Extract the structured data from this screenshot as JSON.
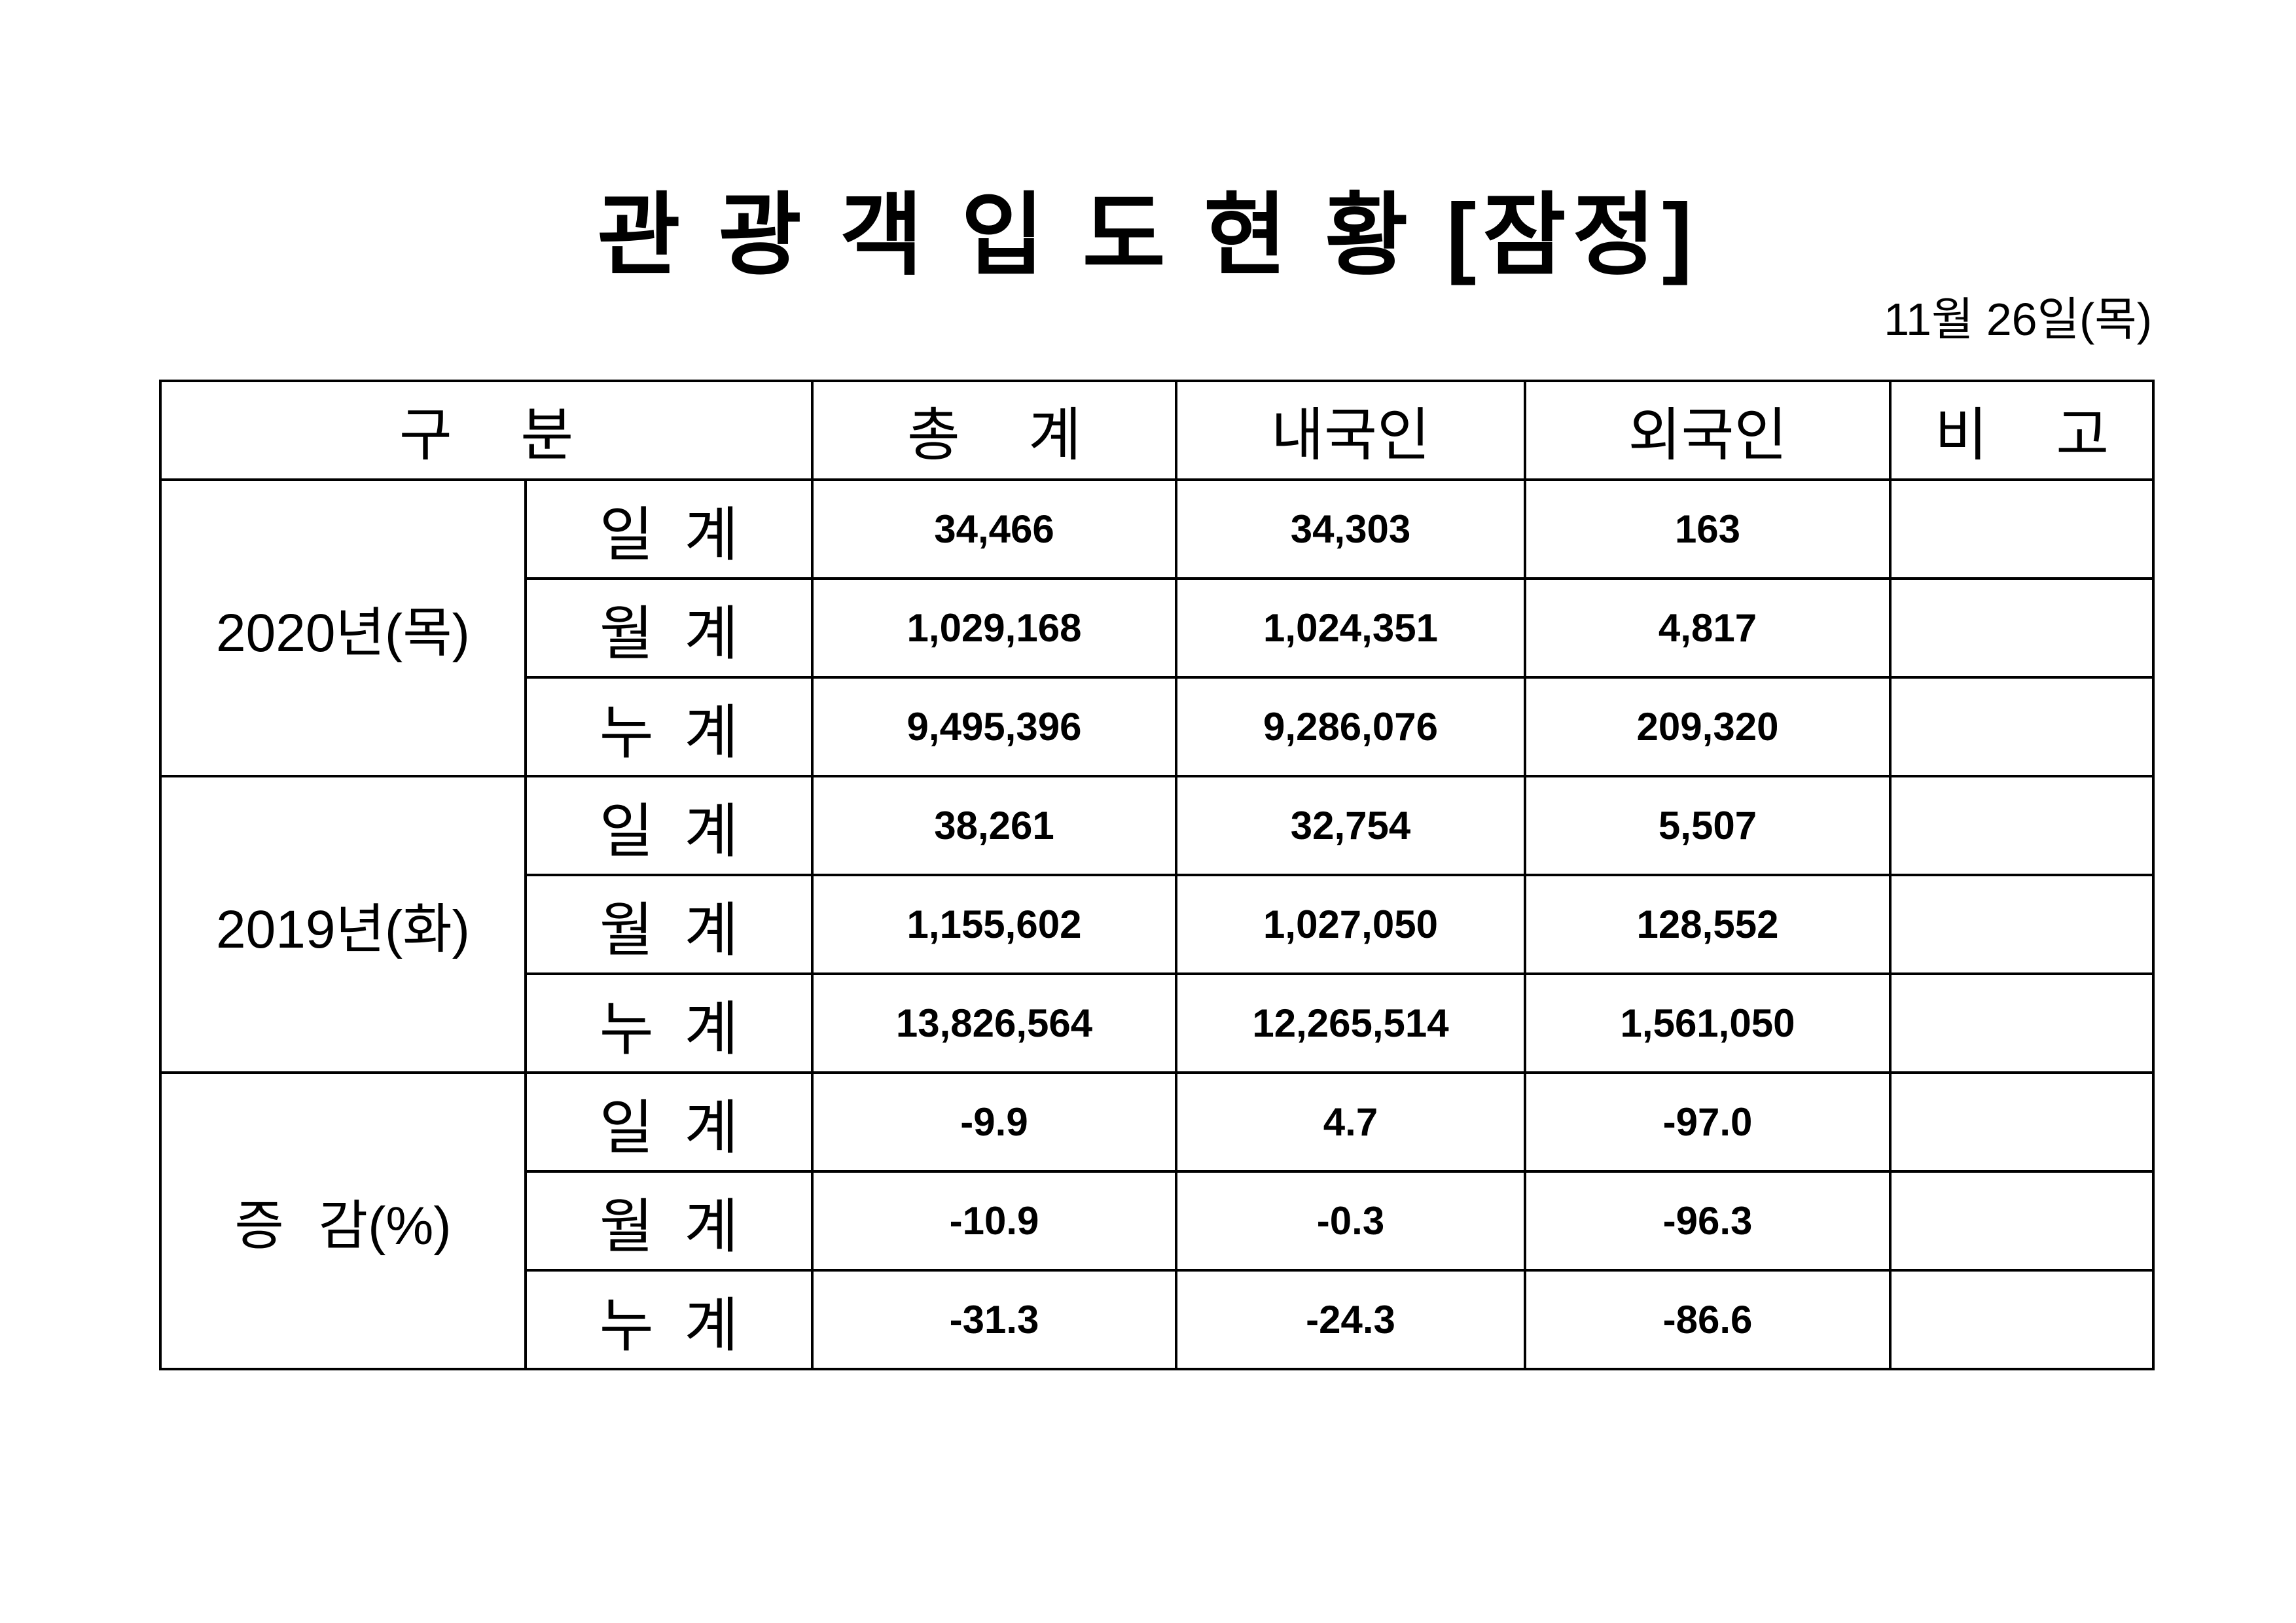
{
  "title": "관 광 객 입 도 현 황 [잠정]",
  "date": "11월 26일(목)",
  "table": {
    "headers": {
      "category": "구 분",
      "total": "총 계",
      "domestic": "내국인",
      "foreign": "외국인",
      "note": "비 고"
    },
    "groups": [
      {
        "label": "2020년(목)",
        "rows": [
          {
            "period": "일 계",
            "total": "34,466",
            "domestic": "34,303",
            "foreign": "163"
          },
          {
            "period": "월 계",
            "total": "1,029,168",
            "domestic": "1,024,351",
            "foreign": "4,817"
          },
          {
            "period": "누 계",
            "total": "9,495,396",
            "domestic": "9,286,076",
            "foreign": "209,320"
          }
        ]
      },
      {
        "label": "2019년(화)",
        "rows": [
          {
            "period": "일 계",
            "total": "38,261",
            "domestic": "32,754",
            "foreign": "5,507"
          },
          {
            "period": "월 계",
            "total": "1,155,602",
            "domestic": "1,027,050",
            "foreign": "128,552"
          },
          {
            "period": "누 계",
            "total": "13,826,564",
            "domestic": "12,265,514",
            "foreign": "1,561,050"
          }
        ]
      },
      {
        "label": "증 감(%)",
        "rows": [
          {
            "period": "일 계",
            "total": "-9.9",
            "domestic": "4.7",
            "foreign": "-97.0"
          },
          {
            "period": "월 계",
            "total": "-10.9",
            "domestic": "-0.3",
            "foreign": "-96.3"
          },
          {
            "period": "누 계",
            "total": "-31.3",
            "domestic": "-24.3",
            "foreign": "-86.6"
          }
        ]
      }
    ]
  }
}
